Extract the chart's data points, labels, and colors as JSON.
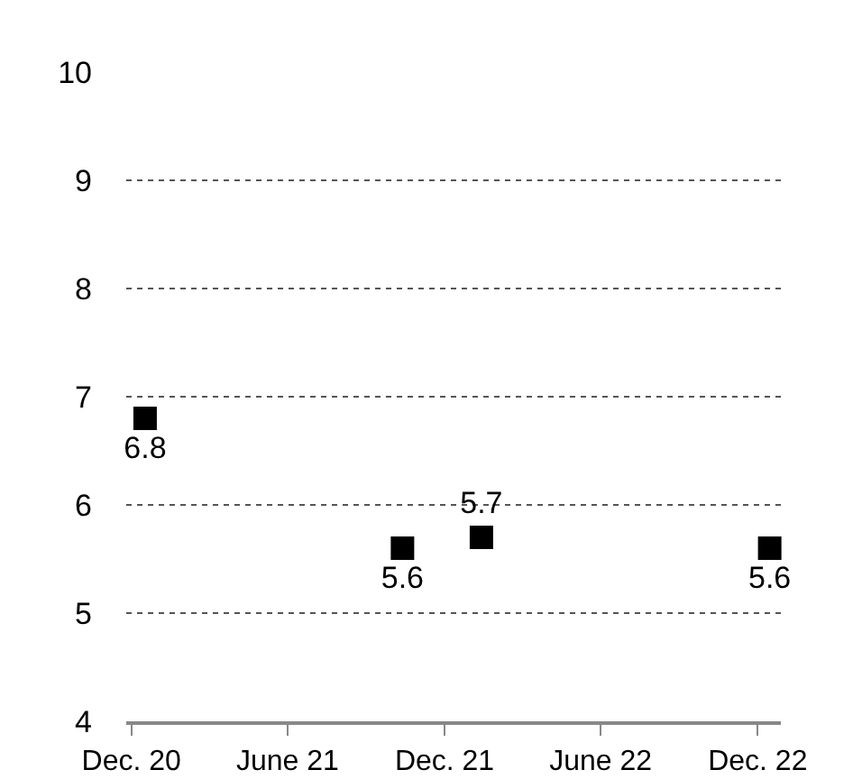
{
  "chart_data": {
    "type": "scatter",
    "x": [
      "2020-12-17",
      "2021-10-13",
      "2022-01-13",
      "2022-12-15"
    ],
    "values": [
      6.8,
      5.6,
      5.7,
      5.6
    ],
    "color": "#000000",
    "marker": "square",
    "data_labels": true,
    "xlim": [
      "2020-11-25",
      "2022-12-28"
    ],
    "xticks": [
      {
        "value": "2020-12-01",
        "label": "Dec. 20"
      },
      {
        "value": "2021-06-01",
        "label": "June 21"
      },
      {
        "value": "2021-12-01",
        "label": "Dec. 21"
      },
      {
        "value": "2022-06-01",
        "label": "June 22"
      },
      {
        "value": "2022-12-01",
        "label": "Dec. 22"
      }
    ],
    "ylim": [
      4,
      10
    ],
    "yticks": [
      4,
      5,
      6,
      7,
      8,
      9,
      10
    ],
    "grid": "y",
    "legend": false
  }
}
